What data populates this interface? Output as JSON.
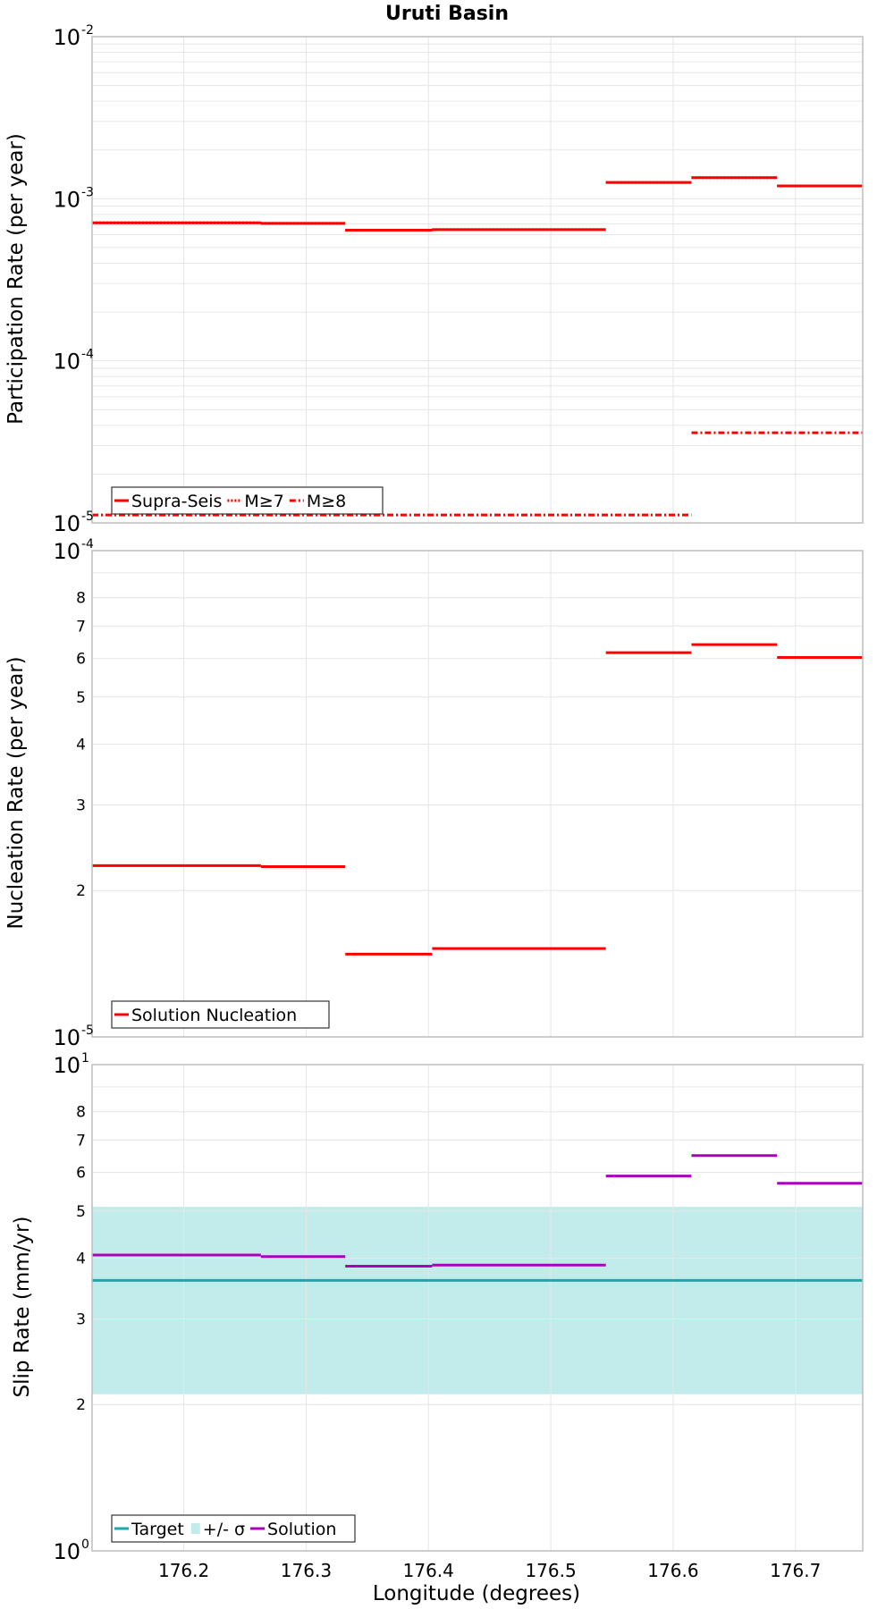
{
  "title": "Uruti Basin",
  "xlabel": "Longitude (degrees)",
  "colors": {
    "rate": "#ff0000",
    "target": "#1aa8a8",
    "sigma": "#c2ecec",
    "solution": "#aa00bb",
    "grid": "#e6e6e6"
  },
  "chart_data": [
    {
      "type": "line",
      "panel": "participation",
      "ylabel": "Participation Rate (per year)",
      "yscale": "log",
      "ylim": [
        1e-05,
        0.01
      ],
      "xlim": [
        176.125,
        176.755
      ],
      "x_ticks": [
        176.2,
        176.3,
        176.4,
        176.5,
        176.6,
        176.7
      ],
      "x_tick_labels": [
        "176.2",
        "176.3",
        "176.4",
        "176.5",
        "176.6",
        "176.7"
      ],
      "y_ticks": [
        {
          "base": "10",
          "exp": "-2",
          "value": 0.01
        },
        {
          "base": "10",
          "exp": "-3",
          "value": 0.001
        },
        {
          "base": "10",
          "exp": "-4",
          "value": 0.0001
        },
        {
          "base": "10",
          "exp": "-5",
          "value": 1e-05
        }
      ],
      "legend": [
        "Supra-Seis",
        "M≥7",
        "M≥8"
      ],
      "series": [
        {
          "name": "Supra-Seis",
          "style": "solid",
          "segments": [
            {
              "x0": 176.125,
              "x1": 176.263,
              "y": 0.00071
            },
            {
              "x0": 176.263,
              "x1": 176.332,
              "y": 0.000705
            },
            {
              "x0": 176.332,
              "x1": 176.403,
              "y": 0.00064
            },
            {
              "x0": 176.403,
              "x1": 176.545,
              "y": 0.000645
            },
            {
              "x0": 176.545,
              "x1": 176.615,
              "y": 0.00126
            },
            {
              "x0": 176.615,
              "x1": 176.685,
              "y": 0.00135
            },
            {
              "x0": 176.685,
              "x1": 176.755,
              "y": 0.0012
            }
          ]
        },
        {
          "name": "M≥7",
          "style": "dotted",
          "segments": [
            {
              "x0": 176.125,
              "x1": 176.263,
              "y": 0.00071
            },
            {
              "x0": 176.263,
              "x1": 176.332,
              "y": 0.000705
            },
            {
              "x0": 176.332,
              "x1": 176.403,
              "y": 0.00064
            },
            {
              "x0": 176.403,
              "x1": 176.545,
              "y": 0.000645
            },
            {
              "x0": 176.545,
              "x1": 176.615,
              "y": 0.00126
            },
            {
              "x0": 176.615,
              "x1": 176.685,
              "y": 0.00135
            },
            {
              "x0": 176.685,
              "x1": 176.755,
              "y": 0.0012
            }
          ]
        },
        {
          "name": "M≥8",
          "style": "dashdot",
          "segments": [
            {
              "x0": 176.125,
              "x1": 176.615,
              "y": 1.12e-05
            },
            {
              "x0": 176.615,
              "x1": 176.755,
              "y": 3.6e-05
            }
          ]
        }
      ]
    },
    {
      "type": "line",
      "panel": "nucleation",
      "ylabel": "Nucleation Rate (per year)",
      "yscale": "log",
      "ylim": [
        1e-05,
        0.0001
      ],
      "xlim": [
        176.125,
        176.755
      ],
      "x_ticks": [
        176.2,
        176.3,
        176.4,
        176.5,
        176.6,
        176.7
      ],
      "y_ticks": [
        {
          "base": "10",
          "exp": "-4",
          "value": 0.0001
        },
        {
          "base": "10",
          "exp": "-5",
          "value": 1e-05
        }
      ],
      "y_minor_ticks": [
        {
          "label": "8",
          "value": 8e-05
        },
        {
          "label": "7",
          "value": 7e-05
        },
        {
          "label": "6",
          "value": 6e-05
        },
        {
          "label": "5",
          "value": 5e-05
        },
        {
          "label": "4",
          "value": 4e-05
        },
        {
          "label": "3",
          "value": 3e-05
        },
        {
          "label": "2",
          "value": 2e-05
        }
      ],
      "legend": [
        "Solution Nucleation"
      ],
      "series": [
        {
          "name": "Solution Nucleation",
          "style": "solid",
          "segments": [
            {
              "x0": 176.125,
              "x1": 176.263,
              "y": 2.25e-05
            },
            {
              "x0": 176.263,
              "x1": 176.332,
              "y": 2.24e-05
            },
            {
              "x0": 176.332,
              "x1": 176.403,
              "y": 1.48e-05
            },
            {
              "x0": 176.403,
              "x1": 176.545,
              "y": 1.52e-05
            },
            {
              "x0": 176.545,
              "x1": 176.615,
              "y": 6.17e-05
            },
            {
              "x0": 176.615,
              "x1": 176.685,
              "y": 6.41e-05
            },
            {
              "x0": 176.685,
              "x1": 176.755,
              "y": 6.03e-05
            }
          ]
        }
      ]
    },
    {
      "type": "line",
      "panel": "slip",
      "ylabel": "Slip Rate (mm/yr)",
      "yscale": "log",
      "ylim": [
        1,
        10
      ],
      "xlim": [
        176.125,
        176.755
      ],
      "x_ticks": [
        176.2,
        176.3,
        176.4,
        176.5,
        176.6,
        176.7
      ],
      "y_ticks": [
        {
          "base": "10",
          "exp": "1",
          "value": 10
        },
        {
          "base": "10",
          "exp": "0",
          "value": 1
        }
      ],
      "y_minor_ticks": [
        {
          "label": "8",
          "value": 8
        },
        {
          "label": "7",
          "value": 7
        },
        {
          "label": "6",
          "value": 6
        },
        {
          "label": "5",
          "value": 5
        },
        {
          "label": "4",
          "value": 4
        },
        {
          "label": "3",
          "value": 3
        },
        {
          "label": "2",
          "value": 2
        }
      ],
      "legend": [
        "Target",
        "+/- σ",
        "Solution"
      ],
      "target": 3.6,
      "sigma_band": [
        2.1,
        5.1
      ],
      "series": [
        {
          "name": "Solution",
          "style": "solid",
          "segments": [
            {
              "x0": 176.125,
              "x1": 176.263,
              "y": 4.06
            },
            {
              "x0": 176.263,
              "x1": 176.332,
              "y": 4.03
            },
            {
              "x0": 176.332,
              "x1": 176.403,
              "y": 3.85
            },
            {
              "x0": 176.403,
              "x1": 176.545,
              "y": 3.87
            },
            {
              "x0": 176.545,
              "x1": 176.615,
              "y": 5.9
            },
            {
              "x0": 176.615,
              "x1": 176.685,
              "y": 6.5
            },
            {
              "x0": 176.685,
              "x1": 176.755,
              "y": 5.7
            }
          ]
        }
      ]
    }
  ]
}
